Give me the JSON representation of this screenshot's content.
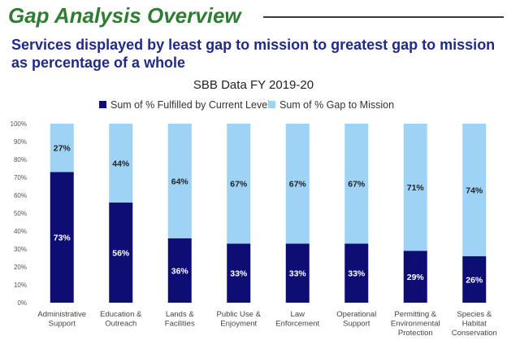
{
  "slide": {
    "title": "Gap Analysis Overview",
    "subtitle": "Services displayed by least gap to mission to greatest gap to mission as percentage of a whole"
  },
  "chart_data": {
    "type": "bar",
    "stacked": true,
    "title": "SBB Data FY 2019-20",
    "categories": [
      [
        "Administrative",
        "Support"
      ],
      [
        "Education &",
        "Outreach"
      ],
      [
        "Lands &",
        "Facilities"
      ],
      [
        "Public Use &",
        "Enjoyment"
      ],
      [
        "Law",
        "Enforcement"
      ],
      [
        "Operational",
        "Support"
      ],
      [
        "Permitting &",
        "Environmental",
        "Protection"
      ],
      [
        "Species &",
        "Habitat",
        "Conservation"
      ]
    ],
    "series": [
      {
        "name": "Sum of % Fulfilled by Current Level",
        "color": "#0d0d73",
        "label_color": "#ffffff",
        "values": [
          73,
          56,
          36,
          33,
          33,
          33,
          29,
          26
        ]
      },
      {
        "name": "Sum of % Gap to Mission",
        "color": "#9fd3f5",
        "label_color": "#222222",
        "values": [
          27,
          44,
          64,
          67,
          67,
          67,
          71,
          74
        ]
      }
    ],
    "value_suffix": "%",
    "ylim": [
      0,
      100
    ],
    "yticks": [
      "0%",
      "10%",
      "20%",
      "30%",
      "40%",
      "50%",
      "60%",
      "70%",
      "80%",
      "90%",
      "100%"
    ],
    "legend": "top",
    "grid": false
  }
}
